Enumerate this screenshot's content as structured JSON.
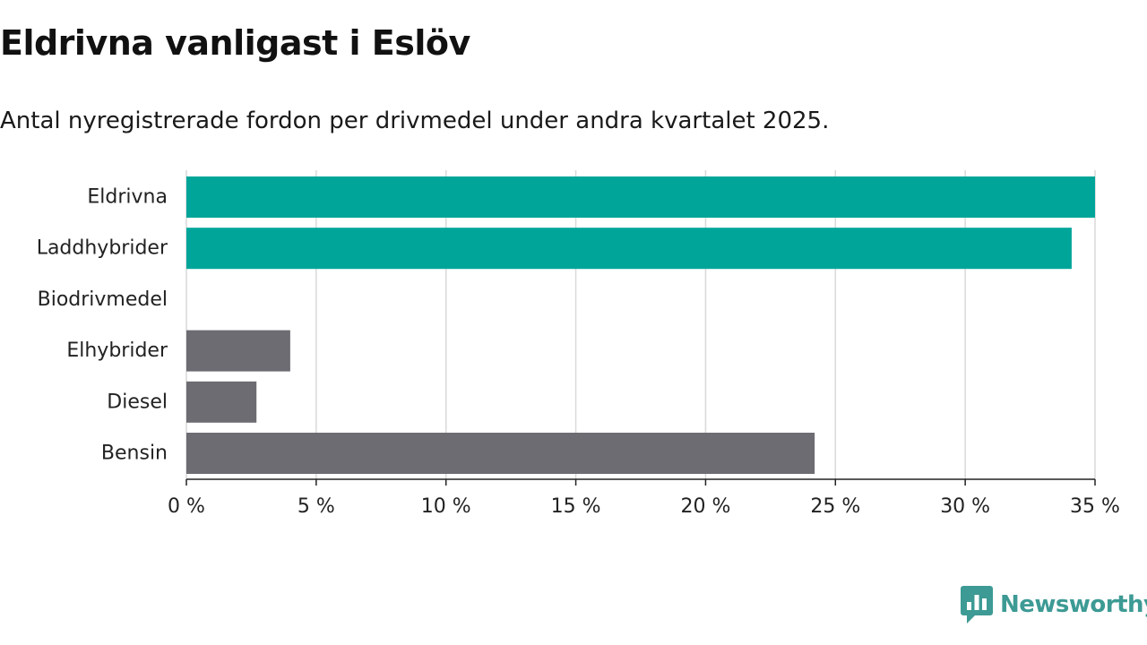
{
  "colors": {
    "highlight": "#00a599",
    "default": "#6d6c72",
    "grid": "#d9d9d9",
    "axis": "#222222",
    "brand": "#3d9a94"
  },
  "brand": {
    "name": "Newsworthy",
    "icon": "bar-chart-speech-bubble-icon"
  },
  "chart_data": {
    "type": "bar",
    "orientation": "horizontal",
    "title": "Eldrivna vanligast i Eslöv",
    "subtitle": "Antal nyregistrerade fordon per drivmedel under andra kvartalet 2025.",
    "xlabel": "",
    "ylabel": "",
    "xlim": [
      0,
      35
    ],
    "ticks": [
      0,
      5,
      10,
      15,
      20,
      25,
      30,
      35
    ],
    "tick_labels": [
      "0 %",
      "5 %",
      "10 %",
      "15 %",
      "20 %",
      "25 %",
      "30 %",
      "35 %"
    ],
    "grid": true,
    "legend": "none",
    "categories": [
      "Eldrivna",
      "Laddhybrider",
      "Biodrivmedel",
      "Elhybrider",
      "Diesel",
      "Bensin"
    ],
    "values": [
      35.0,
      34.1,
      0,
      4.0,
      2.7,
      24.2
    ],
    "highlighted": [
      "Eldrivna",
      "Laddhybrider"
    ]
  }
}
